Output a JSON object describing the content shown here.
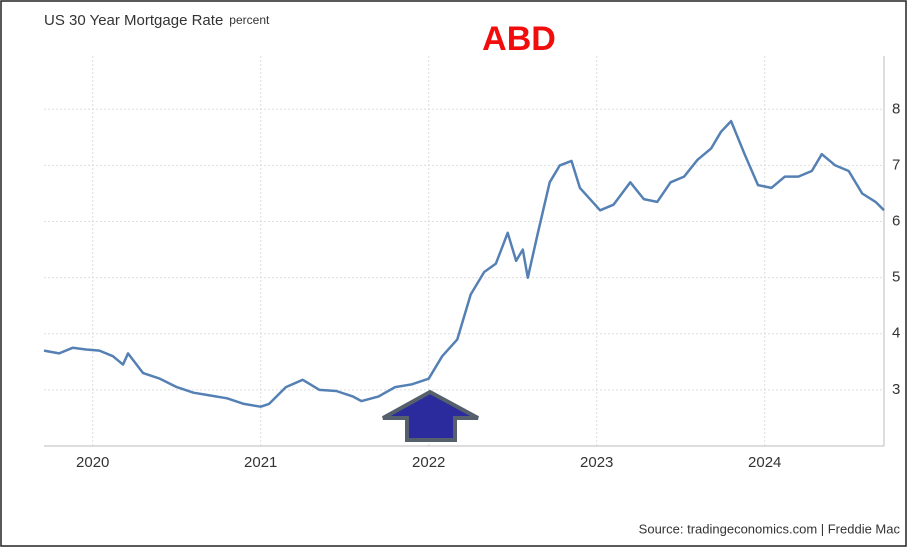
{
  "chart_data": {
    "type": "line",
    "title": "US 30 Year Mortgage Rate",
    "subtitle": "percent",
    "annotation": "ABD",
    "source": "Source: tradingeconomics.com | Freddie Mac",
    "x": [
      2019.71,
      2019.8,
      2019.88,
      2019.96,
      2020.04,
      2020.12,
      2020.18,
      2020.21,
      2020.3,
      2020.4,
      2020.5,
      2020.6,
      2020.7,
      2020.8,
      2020.9,
      2021.0,
      2021.05,
      2021.15,
      2021.25,
      2021.35,
      2021.45,
      2021.55,
      2021.6,
      2021.7,
      2021.8,
      2021.9,
      2022.0,
      2022.08,
      2022.17,
      2022.25,
      2022.33,
      2022.4,
      2022.47,
      2022.52,
      2022.56,
      2022.59,
      2022.65,
      2022.72,
      2022.78,
      2022.85,
      2022.9,
      2022.96,
      2023.02,
      2023.1,
      2023.2,
      2023.28,
      2023.36,
      2023.44,
      2023.52,
      2023.6,
      2023.68,
      2023.74,
      2023.8,
      2023.88,
      2023.96,
      2024.04,
      2024.12,
      2024.2,
      2024.28,
      2024.34,
      2024.42,
      2024.5,
      2024.58,
      2024.66,
      2024.71
    ],
    "series": [
      {
        "name": "US 30 Year Mortgage Rate",
        "color": "#5580b3",
        "values": [
          3.7,
          3.65,
          3.75,
          3.72,
          3.7,
          3.6,
          3.45,
          3.65,
          3.3,
          3.2,
          3.05,
          2.95,
          2.9,
          2.85,
          2.75,
          2.7,
          2.75,
          3.05,
          3.18,
          3.0,
          2.98,
          2.88,
          2.8,
          2.88,
          3.05,
          3.1,
          3.2,
          3.6,
          3.9,
          4.7,
          5.1,
          5.25,
          5.8,
          5.3,
          5.5,
          5.0,
          5.8,
          6.7,
          7.0,
          7.08,
          6.6,
          6.4,
          6.2,
          6.3,
          6.7,
          6.4,
          6.35,
          6.7,
          6.8,
          7.1,
          7.3,
          7.6,
          7.79,
          7.2,
          6.65,
          6.6,
          6.8,
          6.8,
          6.9,
          7.2,
          7.0,
          6.9,
          6.5,
          6.35,
          6.2
        ]
      }
    ],
    "xlim": [
      2019.71,
      2024.71
    ],
    "xticks": [
      2020,
      2021,
      2022,
      2023,
      2024
    ],
    "ylim": [
      2,
      8.95
    ],
    "yticks": [
      3,
      4,
      5,
      6,
      7,
      8
    ],
    "grid": true
  }
}
